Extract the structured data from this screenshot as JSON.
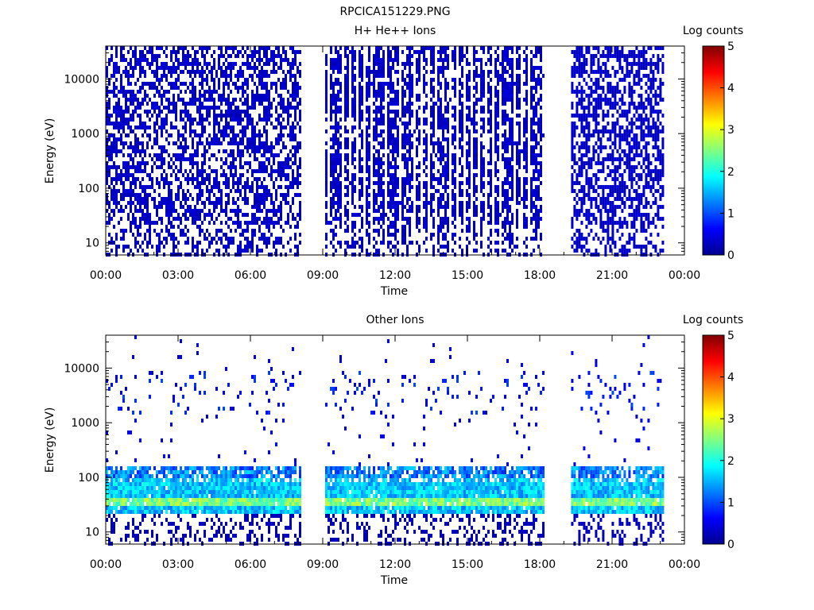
{
  "figure": {
    "title": "RPCICA151229.PNG"
  },
  "chart_data": [
    {
      "type": "heatmap",
      "title": "H+ He++ Ions",
      "xlabel": "Time",
      "ylabel": "Energy (eV)",
      "x_ticks": [
        "00:00",
        "03:00",
        "06:00",
        "09:00",
        "12:00",
        "15:00",
        "18:00",
        "21:00",
        "00:00"
      ],
      "x_range_hours": [
        0,
        24
      ],
      "y_scale": "log",
      "y_range": [
        6,
        40000
      ],
      "y_ticks": [
        {
          "value": 10,
          "label": "10"
        },
        {
          "value": 100,
          "label": "100"
        },
        {
          "value": 1000,
          "label": "1000"
        },
        {
          "value": 10000,
          "label": "10000"
        }
      ],
      "colorbar": {
        "label": "Log counts",
        "range": [
          0,
          5
        ],
        "ticks": [
          "0",
          "1",
          "2",
          "3",
          "4",
          "5"
        ]
      },
      "data_gaps_hours": [
        [
          8.1,
          9.1
        ],
        [
          18.1,
          19.3
        ],
        [
          23.1,
          24
        ]
      ],
      "segments": [
        {
          "start_h": 0.0,
          "end_h": 8.1,
          "pattern": "dense"
        },
        {
          "start_h": 9.1,
          "end_h": 18.1,
          "pattern": "stripes"
        },
        {
          "start_h": 19.3,
          "end_h": 23.1,
          "pattern": "dense"
        }
      ],
      "approx_level_log_counts": 0.3
    },
    {
      "type": "heatmap",
      "title": "Other Ions",
      "xlabel": "Time",
      "ylabel": "Energy (eV)",
      "x_ticks": [
        "00:00",
        "03:00",
        "06:00",
        "09:00",
        "12:00",
        "15:00",
        "18:00",
        "21:00",
        "00:00"
      ],
      "x_range_hours": [
        0,
        24
      ],
      "y_scale": "log",
      "y_range": [
        6,
        40000
      ],
      "y_ticks": [
        {
          "value": 10,
          "label": "10"
        },
        {
          "value": 100,
          "label": "100"
        },
        {
          "value": 1000,
          "label": "1000"
        },
        {
          "value": 10000,
          "label": "10000"
        }
      ],
      "colorbar": {
        "label": "Log counts",
        "range": [
          0,
          5
        ],
        "ticks": [
          "0",
          "1",
          "2",
          "3",
          "4",
          "5"
        ]
      },
      "data_gaps_hours": [
        [
          8.1,
          9.1
        ],
        [
          18.1,
          19.3
        ],
        [
          23.1,
          24
        ]
      ],
      "segments": [
        {
          "start_h": 0.0,
          "end_h": 8.1,
          "pattern": "band"
        },
        {
          "start_h": 9.1,
          "end_h": 18.1,
          "pattern": "band"
        },
        {
          "start_h": 19.3,
          "end_h": 23.1,
          "pattern": "band"
        }
      ],
      "band_energy_eV": [
        22,
        180
      ],
      "peak_energy_eV": [
        30,
        45
      ],
      "peak_level_log_counts": 2.8
    }
  ]
}
